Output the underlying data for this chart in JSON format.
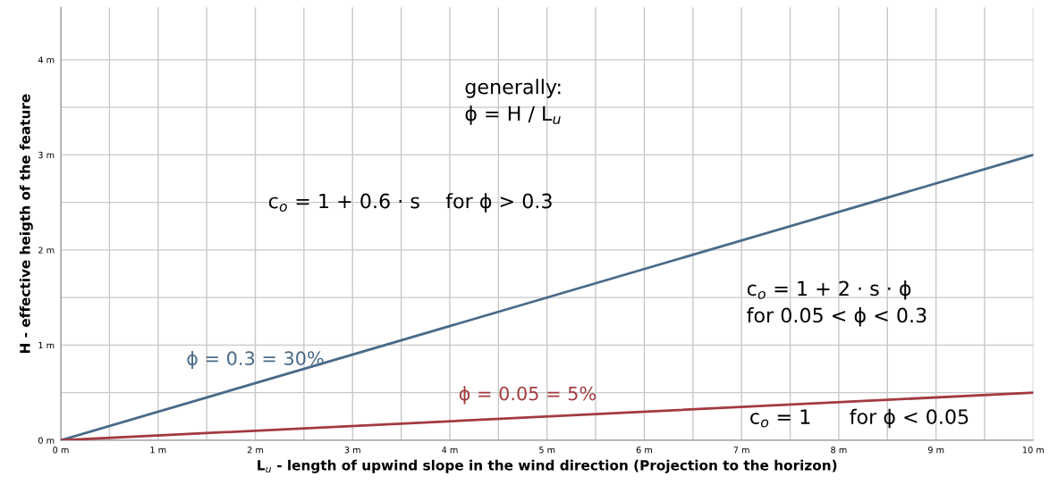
{
  "chart_data": {
    "type": "line",
    "xlabel": "L$_{u}$ - length of upwind slope in the wind direction (Projection to the horizon)",
    "ylabel": "H - effective heigth of the feature",
    "x": [
      0,
      10
    ],
    "series": [
      {
        "name": "ϕ = 0.3 = 30%",
        "color": "#4a6a88",
        "values": [
          0,
          3
        ]
      },
      {
        "name": "ϕ = 0.05 = 5%",
        "color": "#a33a3e",
        "values": [
          0,
          0.5
        ]
      }
    ],
    "xlim": [
      0,
      10
    ],
    "ylim": [
      0,
      4.55
    ],
    "xticks": [
      {
        "value": 0,
        "label": "0 m"
      },
      {
        "value": 0.5,
        "label": null
      },
      {
        "value": 1,
        "label": "1 m"
      },
      {
        "value": 1.5,
        "label": null
      },
      {
        "value": 2,
        "label": "2 m"
      },
      {
        "value": 2.5,
        "label": null
      },
      {
        "value": 3,
        "label": "3 m"
      },
      {
        "value": 3.5,
        "label": null
      },
      {
        "value": 4,
        "label": "4 m"
      },
      {
        "value": 4.5,
        "label": null
      },
      {
        "value": 5,
        "label": "5 m"
      },
      {
        "value": 5.5,
        "label": null
      },
      {
        "value": 6,
        "label": "6 m"
      },
      {
        "value": 6.5,
        "label": null
      },
      {
        "value": 7,
        "label": "7 m"
      },
      {
        "value": 7.5,
        "label": null
      },
      {
        "value": 8,
        "label": "8 m"
      },
      {
        "value": 8.5,
        "label": null
      },
      {
        "value": 9,
        "label": "9 m"
      },
      {
        "value": 9.5,
        "label": null
      },
      {
        "value": 10,
        "label": "10 m"
      }
    ],
    "yticks": [
      {
        "value": 0,
        "label": "0 m"
      },
      {
        "value": 0.5,
        "label": null
      },
      {
        "value": 1,
        "label": "1 m"
      },
      {
        "value": 1.5,
        "label": null
      },
      {
        "value": 2,
        "label": "2 m"
      },
      {
        "value": 2.5,
        "label": null
      },
      {
        "value": 3,
        "label": "3 m"
      },
      {
        "value": 3.5,
        "label": null
      },
      {
        "value": 4,
        "label": "4 m"
      }
    ],
    "grid": true,
    "marker": "none",
    "line_style": "solid",
    "annotations": [
      "generally:\nϕ = H / L$_{u}$",
      "c$_{o}$ = 1 + 0.6 · s    for ϕ > 0.3",
      "c$_{o}$ = 1 + 2 · s · ϕ\nfor 0.05 < ϕ < 0.3",
      {
        "text": "c$_{o}$ = 1      for ϕ < 0.05",
        "x": 7.08,
        "y": 0.33
      }
    ]
  }
}
